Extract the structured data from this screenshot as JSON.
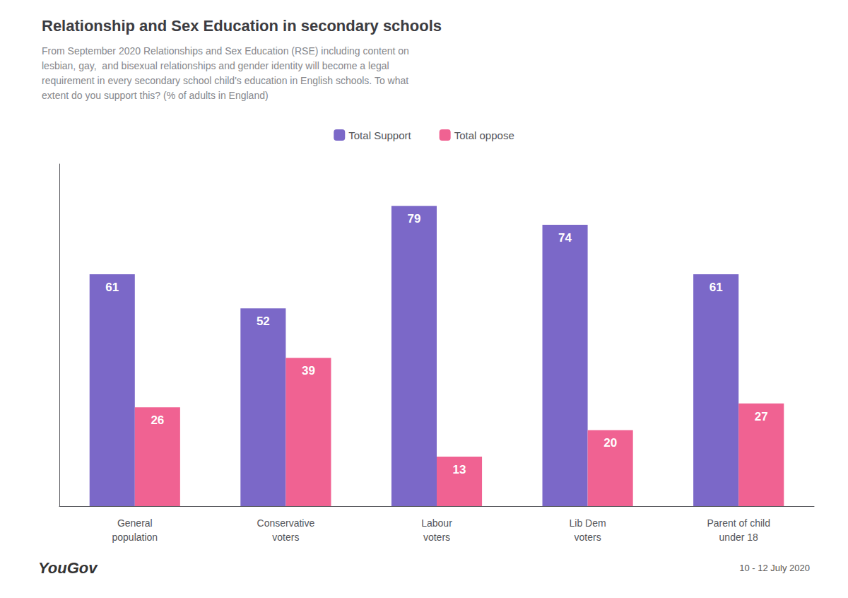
{
  "chart_data": {
    "type": "bar",
    "title": "Relationship and Sex Education in secondary schools",
    "subtitle": "From September 2020 Relationships and Sex Education (RSE) including content on\nlesbian, gay,  and bisexual relationships and gender identity will become a legal\nrequirement in every secondary school child's education in English schools. To what\nextent do you support this? (% of adults in England)",
    "categories": [
      "General\npopulation",
      "Conservative\nvoters",
      "Labour\nvoters",
      "Lib Dem\nvoters",
      "Parent of child\nunder 18"
    ],
    "series": [
      {
        "name": "Total Support",
        "color": "#7B68C8",
        "values": [
          61,
          52,
          79,
          74,
          61
        ]
      },
      {
        "name": "Total oppose",
        "color": "#F06292",
        "values": [
          26,
          39,
          13,
          20,
          27
        ]
      }
    ],
    "ylim": [
      0,
      90
    ],
    "tick_labels": "x",
    "data_labels": true,
    "grid": false,
    "legend": "top",
    "annotations": [
      "YouGov",
      "10 - 12 July 2020"
    ]
  }
}
